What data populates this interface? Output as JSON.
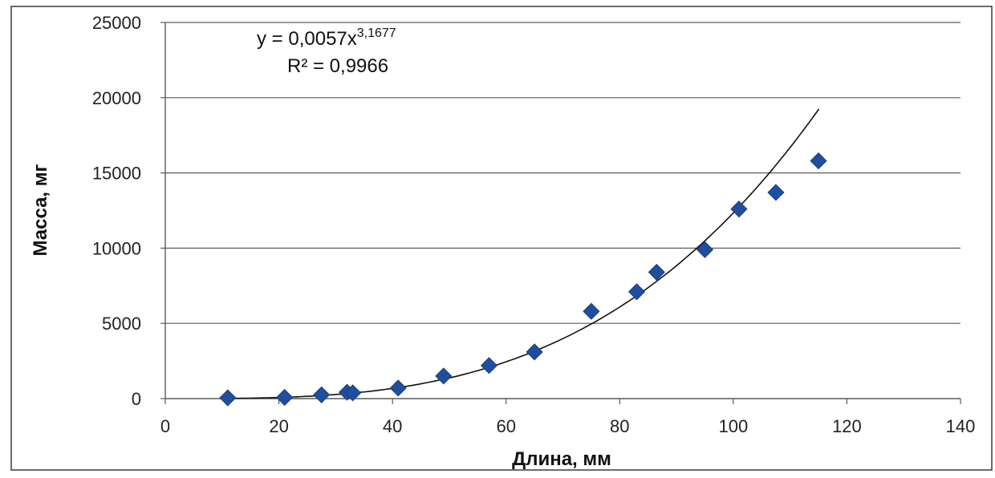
{
  "chart_data": {
    "type": "scatter",
    "xlabel": "Длина, мм",
    "ylabel": "Масса, мг",
    "xlim": [
      0,
      140
    ],
    "ylim": [
      0,
      25000
    ],
    "x_ticks": [
      "0",
      "20",
      "40",
      "60",
      "80",
      "100",
      "120",
      "140"
    ],
    "y_ticks": [
      "0",
      "5000",
      "10000",
      "15000",
      "20000",
      "25000"
    ],
    "grid": "horizontal",
    "marker": "diamond",
    "marker_color": "#1f4e9e",
    "trendline": {
      "type": "power",
      "coefficient": 0.0057,
      "exponent": 3.1677,
      "equation_prefix": "y = 0,0057x",
      "equation_exponent": "3,1677",
      "r_squared_text": "R² = 0,9966",
      "color": "#111111"
    },
    "points": [
      {
        "x": 11,
        "y": 50
      },
      {
        "x": 21,
        "y": 80
      },
      {
        "x": 27.5,
        "y": 250
      },
      {
        "x": 32,
        "y": 420
      },
      {
        "x": 33,
        "y": 380
      },
      {
        "x": 41,
        "y": 700
      },
      {
        "x": 49,
        "y": 1500
      },
      {
        "x": 57,
        "y": 2200
      },
      {
        "x": 65,
        "y": 3100
      },
      {
        "x": 75,
        "y": 5800
      },
      {
        "x": 83,
        "y": 7100
      },
      {
        "x": 86.5,
        "y": 8400
      },
      {
        "x": 95,
        "y": 9900
      },
      {
        "x": 101,
        "y": 12600
      },
      {
        "x": 107.5,
        "y": 13700
      },
      {
        "x": 115,
        "y": 15800
      }
    ]
  }
}
